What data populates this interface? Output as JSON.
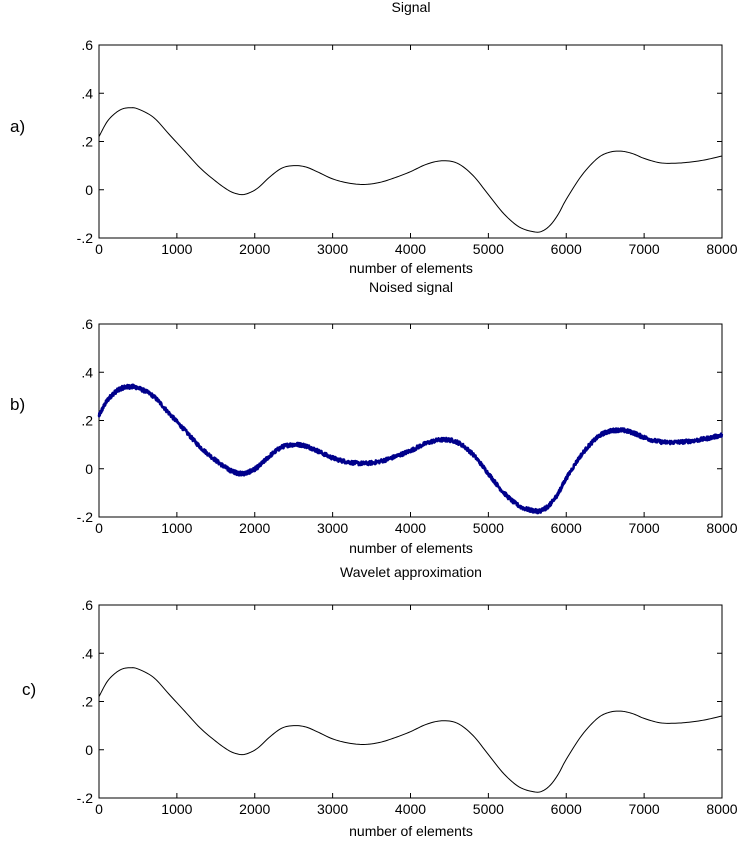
{
  "chart_data": [
    {
      "type": "line",
      "panel_label": "a)",
      "title": "Signal",
      "xlabel": "number of elements",
      "ylabel": "",
      "xlim": [
        0,
        8000
      ],
      "ylim": [
        -0.2,
        0.6
      ],
      "xticks": [
        0,
        1000,
        2000,
        3000,
        4000,
        5000,
        6000,
        7000,
        8000
      ],
      "yticks": [
        -0.2,
        0,
        0.2,
        0.4,
        0.6
      ],
      "grid": false,
      "series": [
        {
          "color": "#000000",
          "noisy": false,
          "x": [
            0,
            100,
            200,
            300,
            400,
            500,
            700,
            900,
            1100,
            1300,
            1500,
            1650,
            1750,
            1850,
            1950,
            2050,
            2200,
            2350,
            2500,
            2650,
            2800,
            3000,
            3200,
            3400,
            3600,
            3800,
            4000,
            4200,
            4400,
            4600,
            4800,
            5000,
            5200,
            5400,
            5600,
            5700,
            5800,
            5900,
            6000,
            6200,
            6400,
            6550,
            6700,
            6850,
            7000,
            7200,
            7400,
            7600,
            7800,
            8000
          ],
          "y": [
            0.22,
            0.28,
            0.315,
            0.335,
            0.34,
            0.335,
            0.3,
            0.23,
            0.16,
            0.09,
            0.035,
            0.0,
            -0.015,
            -0.02,
            -0.01,
            0.01,
            0.055,
            0.09,
            0.1,
            0.095,
            0.075,
            0.045,
            0.028,
            0.022,
            0.03,
            0.05,
            0.075,
            0.105,
            0.12,
            0.11,
            0.06,
            -0.02,
            -0.1,
            -0.155,
            -0.175,
            -0.17,
            -0.145,
            -0.1,
            -0.04,
            0.06,
            0.13,
            0.155,
            0.16,
            0.15,
            0.13,
            0.112,
            0.11,
            0.115,
            0.125,
            0.14
          ]
        }
      ]
    },
    {
      "type": "line",
      "panel_label": "b)",
      "title": "Noised signal",
      "xlabel": "number of elements",
      "ylabel": "",
      "xlim": [
        0,
        8000
      ],
      "ylim": [
        -0.2,
        0.6
      ],
      "xticks": [
        0,
        1000,
        2000,
        3000,
        4000,
        5000,
        6000,
        7000,
        8000
      ],
      "yticks": [
        -0.2,
        0,
        0.2,
        0.4,
        0.6
      ],
      "grid": false,
      "series": [
        {
          "color": "#00008b",
          "noisy": true,
          "noise_amplitude": 0.008,
          "x": [
            0,
            100,
            200,
            300,
            400,
            500,
            700,
            900,
            1100,
            1300,
            1500,
            1650,
            1750,
            1850,
            1950,
            2050,
            2200,
            2350,
            2500,
            2650,
            2800,
            3000,
            3200,
            3400,
            3600,
            3800,
            4000,
            4200,
            4400,
            4600,
            4800,
            5000,
            5200,
            5400,
            5600,
            5700,
            5800,
            5900,
            6000,
            6200,
            6400,
            6550,
            6700,
            6850,
            7000,
            7200,
            7400,
            7600,
            7800,
            8000
          ],
          "y": [
            0.22,
            0.28,
            0.315,
            0.335,
            0.34,
            0.335,
            0.3,
            0.23,
            0.16,
            0.09,
            0.035,
            0.0,
            -0.015,
            -0.02,
            -0.01,
            0.01,
            0.055,
            0.09,
            0.1,
            0.095,
            0.075,
            0.045,
            0.028,
            0.022,
            0.03,
            0.05,
            0.075,
            0.105,
            0.12,
            0.11,
            0.06,
            -0.02,
            -0.1,
            -0.155,
            -0.175,
            -0.17,
            -0.145,
            -0.1,
            -0.04,
            0.06,
            0.13,
            0.155,
            0.16,
            0.15,
            0.13,
            0.112,
            0.11,
            0.115,
            0.125,
            0.14
          ]
        }
      ]
    },
    {
      "type": "line",
      "panel_label": "c)",
      "title": "Wavelet approximation",
      "xlabel": "number of elements",
      "ylabel": "",
      "xlim": [
        0,
        8000
      ],
      "ylim": [
        -0.2,
        0.6
      ],
      "xticks": [
        0,
        1000,
        2000,
        3000,
        4000,
        5000,
        6000,
        7000,
        8000
      ],
      "yticks": [
        -0.2,
        0,
        0.2,
        0.4,
        0.6
      ],
      "grid": false,
      "series": [
        {
          "color": "#000000",
          "noisy": false,
          "x": [
            0,
            100,
            200,
            300,
            400,
            500,
            700,
            900,
            1100,
            1300,
            1500,
            1650,
            1750,
            1850,
            1950,
            2050,
            2200,
            2350,
            2500,
            2650,
            2800,
            3000,
            3200,
            3400,
            3600,
            3800,
            4000,
            4200,
            4400,
            4600,
            4800,
            5000,
            5200,
            5400,
            5600,
            5700,
            5800,
            5900,
            6000,
            6200,
            6400,
            6550,
            6700,
            6850,
            7000,
            7200,
            7400,
            7600,
            7800,
            8000
          ],
          "y": [
            0.22,
            0.28,
            0.315,
            0.335,
            0.34,
            0.335,
            0.3,
            0.23,
            0.16,
            0.09,
            0.035,
            0.0,
            -0.015,
            -0.02,
            -0.01,
            0.01,
            0.055,
            0.09,
            0.1,
            0.095,
            0.075,
            0.045,
            0.028,
            0.022,
            0.03,
            0.05,
            0.075,
            0.105,
            0.12,
            0.11,
            0.06,
            -0.02,
            -0.1,
            -0.155,
            -0.175,
            -0.17,
            -0.145,
            -0.1,
            -0.04,
            0.06,
            0.13,
            0.155,
            0.16,
            0.15,
            0.13,
            0.112,
            0.11,
            0.115,
            0.125,
            0.14
          ]
        }
      ]
    }
  ]
}
